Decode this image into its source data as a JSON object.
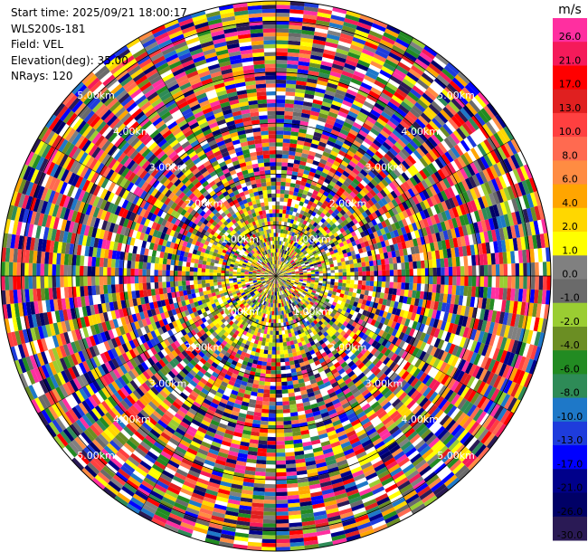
{
  "header": {
    "start_time": "Start time: 2025/09/21 18:00:17",
    "instrument": "WLS200s-181",
    "field": "Field: VEL",
    "elevation": "Elevation(deg): 35.00",
    "nrays": "NRays: 120"
  },
  "chart_data": {
    "type": "heatmap",
    "projection": "polar-ppi",
    "field": "VEL",
    "unit": "m/s",
    "n_rays": 120,
    "elevation_deg": 35.0,
    "max_range_km": 5.4,
    "range_ring_labels": [
      "1.00km",
      "2.00km",
      "3.00km",
      "4.00km",
      "5.00km"
    ],
    "range_ring_values_km": [
      1,
      2,
      3,
      4,
      5
    ],
    "colorbar": {
      "unit_label": "m/s",
      "ticks": [
        "26.0",
        "21.0",
        "17.0",
        "13.0",
        "10.0",
        "8.0",
        "6.0",
        "4.0",
        "2.0",
        "1.0",
        "0.0",
        "-1.0",
        "-2.0",
        "-4.0",
        "-6.0",
        "-8.0",
        "-10.0",
        "-13.0",
        "-17.0",
        "-21.0",
        "-26.0",
        "-30.0"
      ],
      "colors": [
        "#ff2fa0",
        "#f51a5a",
        "#ff0000",
        "#e02020",
        "#ff4040",
        "#ff6a50",
        "#ff8c42",
        "#ffa500",
        "#ffd700",
        "#ffff00",
        "#808080",
        "#6a6a6a",
        "#9acd32",
        "#6b8e23",
        "#228b22",
        "#2e8b57",
        "#1e78c8",
        "#1e3cdc",
        "#0000ff",
        "#00008b",
        "#000066",
        "#2a1a55"
      ]
    }
  }
}
